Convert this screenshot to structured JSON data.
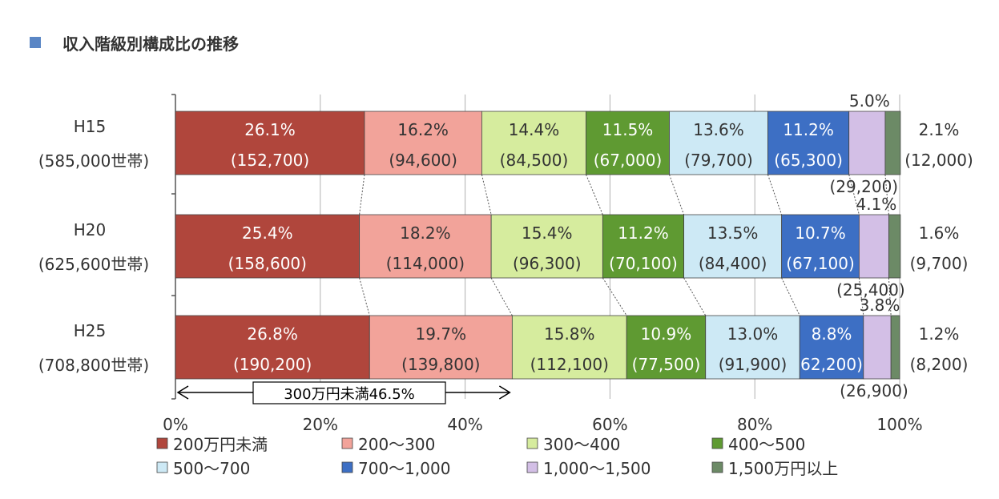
{
  "chart_data": {
    "type": "bar",
    "orientation": "horizontal",
    "stacked": true,
    "title": "収入階級別構成比の推移",
    "title_marker_color": "#5a86c5",
    "categories": [
      "H15",
      "H20",
      "H25"
    ],
    "category_sublabels": [
      "(585,000世帯)",
      "(625,600世帯)",
      "(708,800世帯)"
    ],
    "xlim": [
      0,
      100
    ],
    "x_ticks": [
      "0%",
      "20%",
      "40%",
      "60%",
      "80%",
      "100%"
    ],
    "grid": true,
    "legend_position": "bottom",
    "series": [
      {
        "name": "200万円未満",
        "color": "#b0463c",
        "values": [
          26.1,
          25.4,
          26.8
        ],
        "pct_labels": [
          "26.1%",
          "25.4%",
          "26.8%"
        ],
        "count_labels": [
          "(152,700)",
          "(158,600)",
          "(190,200)"
        ]
      },
      {
        "name": "200～300",
        "color": "#f2a39a",
        "values": [
          16.2,
          18.2,
          19.7
        ],
        "pct_labels": [
          "16.2%",
          "18.2%",
          "19.7%"
        ],
        "count_labels": [
          "(94,600)",
          "(114,000)",
          "(139,800)"
        ]
      },
      {
        "name": "300～400",
        "color": "#d6ec9e",
        "values": [
          14.4,
          15.4,
          15.8
        ],
        "pct_labels": [
          "14.4%",
          "15.4%",
          "15.8%"
        ],
        "count_labels": [
          "(84,500)",
          "(96,300)",
          "(112,100)"
        ]
      },
      {
        "name": "400～500",
        "color": "#5f9a32",
        "values": [
          11.5,
          11.2,
          10.9
        ],
        "pct_labels": [
          "11.5%",
          "11.2%",
          "10.9%"
        ],
        "count_labels": [
          "(67,000)",
          "(70,100)",
          "(77,500)"
        ]
      },
      {
        "name": "500～700",
        "color": "#cde9f5",
        "values": [
          13.6,
          13.5,
          13.0
        ],
        "pct_labels": [
          "13.6%",
          "13.5%",
          "13.0%"
        ],
        "count_labels": [
          "(79,700)",
          "(84,400)",
          "(91,900)"
        ]
      },
      {
        "name": "700～1,000",
        "color": "#3d6fc4",
        "values": [
          11.2,
          10.7,
          8.8
        ],
        "pct_labels": [
          "11.2%",
          "10.7%",
          "8.8%"
        ],
        "count_labels": [
          "(65,300)",
          "(67,100)",
          "62,200)"
        ]
      },
      {
        "name": "1,000～1,500",
        "color": "#d3bfe6",
        "values": [
          5.0,
          4.1,
          3.8
        ],
        "pct_labels": [
          "5.0%",
          "4.1%",
          "3.8%"
        ],
        "count_labels": [
          "(29,200)",
          "(25,400)",
          "(26,900)"
        ]
      },
      {
        "name": "1,500万円以上",
        "color": "#6c8a66",
        "values": [
          2.1,
          1.6,
          1.2
        ],
        "pct_labels": [
          "2.1%",
          "1.6%",
          "1.2%"
        ],
        "count_labels": [
          "(12,000)",
          "(9,700)",
          "(8,200)"
        ]
      }
    ],
    "annotation": {
      "text": "300万円未満46.5%",
      "from": 0,
      "to": 46.5
    }
  }
}
